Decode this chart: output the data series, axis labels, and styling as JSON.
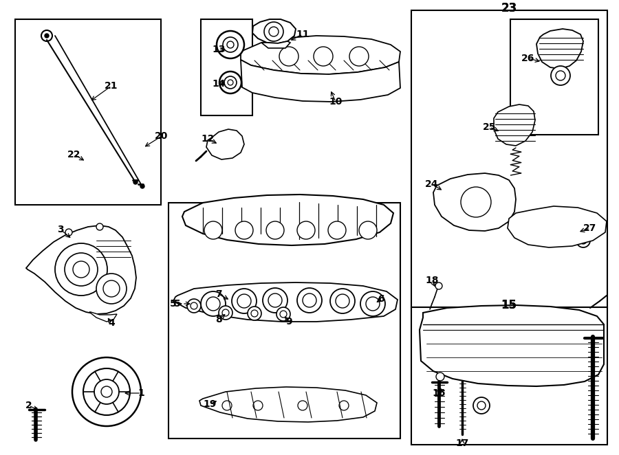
{
  "bg_color": "#ffffff",
  "fig_width": 9.0,
  "fig_height": 6.62,
  "dpi": 100
}
